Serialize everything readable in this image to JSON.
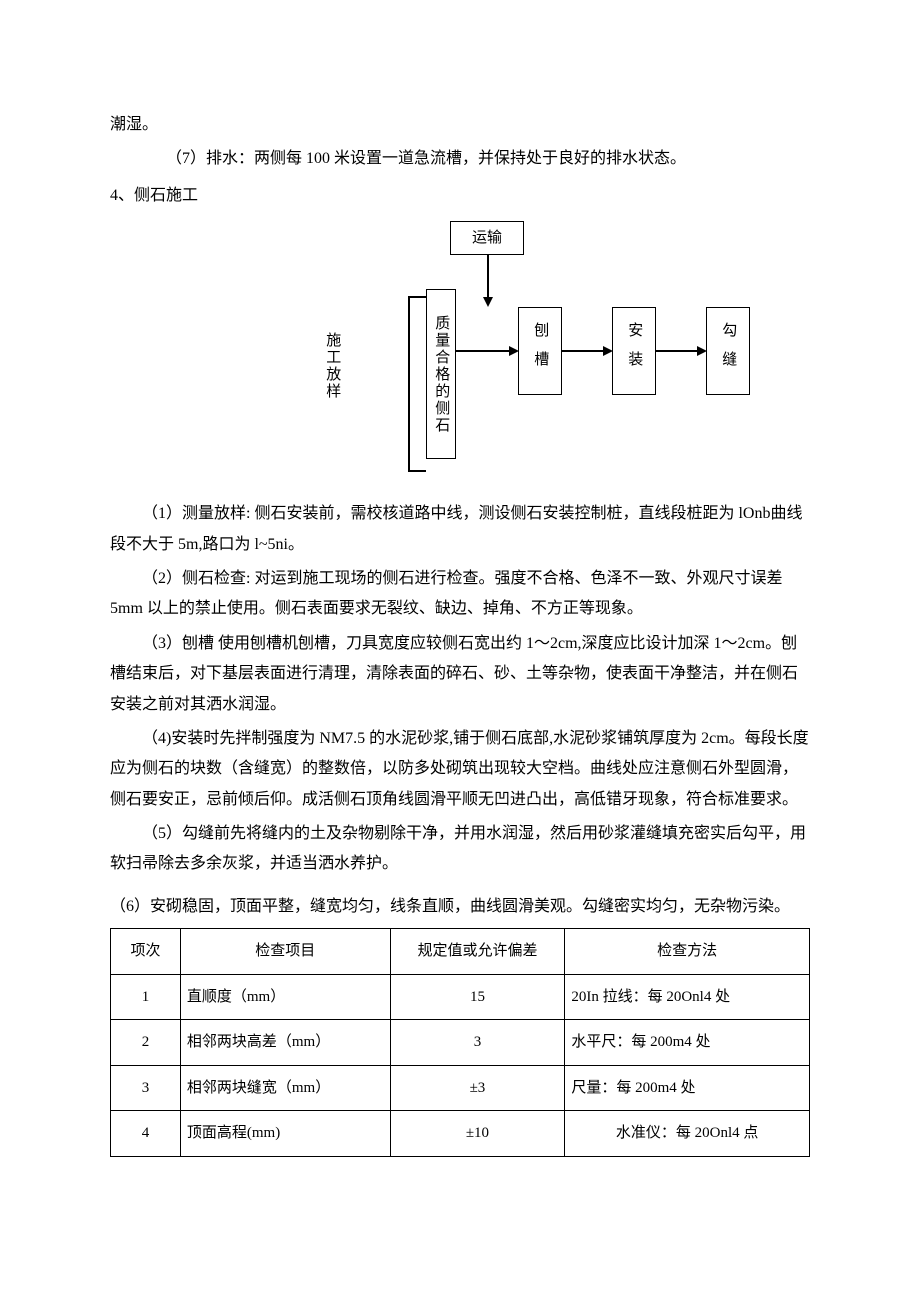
{
  "top_fragment": "潮湿。",
  "p7": "（7）排水：两侧每 100 米设置一道急流槽，并保持处于良好的排水状态。",
  "h4": "4、侧石施工",
  "flow": {
    "transport": "运输",
    "left_vlabel": "施工放样",
    "quality": "质量合格的侧石",
    "step1": "刨槽",
    "step2": "安装",
    "step3": "勾缝"
  },
  "s1": "（1）测量放样:  侧石安装前，需校核道路中线，测设侧石安装控制桩，直线段桩距为 lOnb曲线段不大于 5m,路口为 l~5ni。",
  "s2": "（2）侧石检查: 对运到施工现场的侧石进行检查。强度不合格、色泽不一致、外观尺寸误差 5mm 以上的禁止使用。侧石表面要求无裂纹、缺边、掉角、不方正等现象。",
  "s3": "（3）刨槽  使用刨槽机刨槽，刀具宽度应较侧石宽出约 1～2cm,深度应比设计加深 1～2cm。刨槽结束后，对下基层表面进行清理，清除表面的碎石、砂、土等杂物，使表面干净整洁，并在侧石安装之前对其洒水润湿。",
  "s4": "（4)安装时先拌制强度为 NM7.5 的水泥砂浆,铺于侧石底部,水泥砂浆铺筑厚度为 2cm。每段长度应为侧石的块数（含缝宽）的整数倍，以防多处砌筑出现较大空档。曲线处应注意侧石外型圆滑，侧石要安正，忌前倾后仰。成活侧石顶角线圆滑平顺无凹进凸出，高低错牙现象，符合标准要求。",
  "s5": "（5）勾缝前先将缝内的土及杂物剔除干净，并用水润湿，然后用砂浆灌缝填充密实后勾平，用软扫帚除去多余灰浆，并适当洒水养护。",
  "s6": "（6）安砌稳固，顶面平整，缝宽均匀，线条直顺，曲线圆滑美观。勾缝密实均匀，无杂物污染。",
  "table": {
    "headers": {
      "c1": "项次",
      "c2": "检查项目",
      "c3": "规定值或允许偏差",
      "c4": "检查方法"
    },
    "rows": [
      {
        "idx": "1",
        "item": "直顺度（mm）",
        "val": "15",
        "method": "20In 拉线：每 20Onl4 处",
        "method_center": false
      },
      {
        "idx": "2",
        "item": "相邻两块高差（mm）",
        "val": "3",
        "method": "水平尺：每 200m4 处",
        "method_center": false
      },
      {
        "idx": "3",
        "item": "相邻两块缝宽（mm）",
        "val": "±3",
        "method": "尺量：每 200m4 处",
        "method_center": false
      },
      {
        "idx": "4",
        "item": "顶面高程(mm)",
        "val": "±10",
        "method": "水准仪：每 20Onl4 点",
        "method_center": true
      }
    ]
  }
}
